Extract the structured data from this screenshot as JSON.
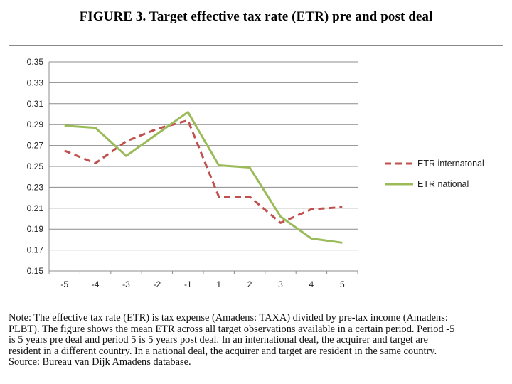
{
  "figure_title": "FIGURE 3. Target effective tax rate (ETR) pre and post deal",
  "chart_data": {
    "type": "line",
    "title": "",
    "xlabel": "",
    "ylabel": "",
    "x": [
      "-5",
      "-4",
      "-3",
      "-2",
      "-1",
      "1",
      "2",
      "3",
      "4",
      "5"
    ],
    "ylim": [
      0.15,
      0.35
    ],
    "yticks": [
      "0.15",
      "0.17",
      "0.19",
      "0.21",
      "0.23",
      "0.25",
      "0.27",
      "0.29",
      "0.31",
      "0.33",
      "0.35"
    ],
    "grid": true,
    "legend_position": "right",
    "series": [
      {
        "name": "ETR internatonal",
        "color": "#c0504d",
        "style": "dashed",
        "values": [
          0.265,
          0.253,
          0.274,
          0.286,
          0.294,
          0.221,
          0.221,
          0.196,
          0.209,
          0.211
        ]
      },
      {
        "name": "ETR national",
        "color": "#9bbb59",
        "style": "solid",
        "values": [
          0.289,
          0.287,
          0.26,
          0.281,
          0.302,
          0.251,
          0.249,
          0.202,
          0.181,
          0.177
        ]
      }
    ]
  },
  "note": [
    "Note: The effective tax rate (ETR) is tax expense (Amadens: TAXA) divided by pre-tax income (Amadens:",
    "PLBT). The figure shows the mean ETR across all target observations available in a certain period. Period -5",
    "is 5 years pre deal and period 5 is 5 years post deal. In an international deal, the acquirer and target are",
    "resident in a different country. In a national deal, the acquirer and target are resident in the same country.",
    "Source: Bureau van Dijk Amadens database."
  ]
}
